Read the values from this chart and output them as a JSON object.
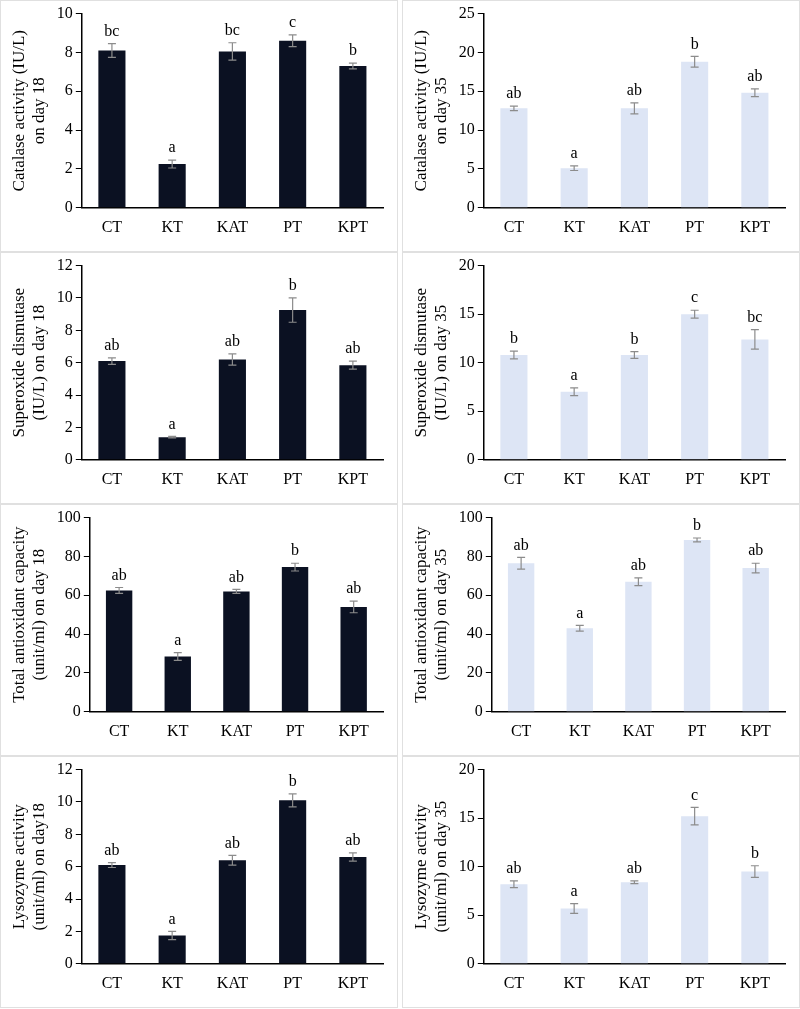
{
  "chart_data": [
    {
      "type": "bar",
      "ylabel": "Catalase activity (IU/L) on day 18",
      "categories": [
        "CT",
        "KT",
        "KAT",
        "PT",
        "KPT"
      ],
      "color": "#0b1122",
      "values": [
        8.1,
        2.25,
        8.05,
        8.6,
        7.3
      ],
      "errors": [
        0.35,
        0.2,
        0.45,
        0.3,
        0.15
      ],
      "value_labels": [
        "bc",
        "a",
        "bc",
        "c",
        "b"
      ],
      "ylim": [
        0,
        10
      ],
      "yticks": [
        0,
        2,
        4,
        6,
        8,
        10
      ],
      "grid": false,
      "legend": false
    },
    {
      "type": "bar",
      "ylabel": "Catalase activity (IU/L) on day 35",
      "categories": [
        "CT",
        "KT",
        "KAT",
        "PT",
        "KPT"
      ],
      "color": "#dde5f5",
      "values": [
        12.8,
        5.1,
        12.8,
        18.8,
        14.8
      ],
      "errors": [
        0.3,
        0.3,
        0.7,
        0.7,
        0.5
      ],
      "value_labels": [
        "ab",
        "a",
        "ab",
        "b",
        "ab"
      ],
      "ylim": [
        0,
        25
      ],
      "yticks": [
        0,
        5,
        10,
        15,
        20,
        25
      ],
      "grid": false,
      "legend": false
    },
    {
      "type": "bar",
      "ylabel": "Superoxide dismutase (IU/L) on day 18",
      "categories": [
        "CT",
        "KT",
        "KAT",
        "PT",
        "KPT"
      ],
      "color": "#0b1122",
      "values": [
        6.1,
        1.4,
        6.2,
        9.25,
        5.85
      ],
      "errors": [
        0.2,
        0.05,
        0.35,
        0.75,
        0.25
      ],
      "value_labels": [
        "ab",
        "a",
        "ab",
        "b",
        "ab"
      ],
      "ylim": [
        0,
        12
      ],
      "yticks": [
        0,
        2,
        4,
        6,
        8,
        10,
        12
      ],
      "grid": false,
      "legend": false
    },
    {
      "type": "bar",
      "ylabel": "Superoxide dismutase (IU/L) on day 35",
      "categories": [
        "CT",
        "KT",
        "KAT",
        "PT",
        "KPT"
      ],
      "color": "#dde5f5",
      "values": [
        10.8,
        7.0,
        10.8,
        15.0,
        12.4
      ],
      "errors": [
        0.4,
        0.4,
        0.35,
        0.4,
        1.0
      ],
      "value_labels": [
        "b",
        "a",
        "b",
        "c",
        "bc"
      ],
      "ylim": [
        0,
        20
      ],
      "yticks": [
        0,
        5,
        10,
        15,
        20
      ],
      "grid": false,
      "legend": false
    },
    {
      "type": "bar",
      "ylabel": "Total antioxidant capacity (unit/ml) on day 18",
      "categories": [
        "CT",
        "KT",
        "KAT",
        "PT",
        "KPT"
      ],
      "color": "#0b1122",
      "values": [
        62.5,
        28.5,
        62,
        74.5,
        54
      ],
      "errors": [
        1.5,
        2,
        1,
        2,
        3
      ],
      "value_labels": [
        "ab",
        "a",
        "ab",
        "b",
        "ab"
      ],
      "ylim": [
        0,
        100
      ],
      "yticks": [
        0,
        20,
        40,
        60,
        80,
        100
      ],
      "grid": false,
      "legend": false
    },
    {
      "type": "bar",
      "ylabel": "Total antioxidant capacity (unit/ml) on day 35",
      "categories": [
        "CT",
        "KT",
        "KAT",
        "PT",
        "KPT"
      ],
      "color": "#dde5f5",
      "values": [
        76.5,
        43,
        67,
        88.5,
        74
      ],
      "errors": [
        3,
        1.5,
        2,
        1,
        2.5
      ],
      "value_labels": [
        "ab",
        "a",
        "ab",
        "b",
        "ab"
      ],
      "ylim": [
        0,
        100
      ],
      "yticks": [
        0,
        20,
        40,
        60,
        80,
        100
      ],
      "grid": false,
      "legend": false
    },
    {
      "type": "bar",
      "ylabel": "Lysozyme activity (unit/ml) on day18",
      "categories": [
        "CT",
        "KT",
        "KAT",
        "PT",
        "KPT"
      ],
      "color": "#0b1122",
      "values": [
        6.1,
        1.75,
        6.4,
        10.1,
        6.6
      ],
      "errors": [
        0.15,
        0.25,
        0.3,
        0.4,
        0.25
      ],
      "value_labels": [
        "ab",
        "a",
        "ab",
        "b",
        "ab"
      ],
      "ylim": [
        0,
        12
      ],
      "yticks": [
        0,
        2,
        4,
        6,
        8,
        10,
        12
      ],
      "grid": false,
      "legend": false
    },
    {
      "type": "bar",
      "ylabel": "Lysozyme activity (unit/ml) on day 35",
      "categories": [
        "CT",
        "KT",
        "KAT",
        "PT",
        "KPT"
      ],
      "color": "#dde5f5",
      "values": [
        8.2,
        5.7,
        8.4,
        15.2,
        9.5
      ],
      "errors": [
        0.35,
        0.5,
        0.15,
        0.9,
        0.6
      ],
      "value_labels": [
        "ab",
        "a",
        "ab",
        "c",
        "b"
      ],
      "ylim": [
        0,
        20
      ],
      "yticks": [
        0,
        5,
        10,
        15,
        20
      ],
      "grid": false,
      "legend": false
    }
  ]
}
